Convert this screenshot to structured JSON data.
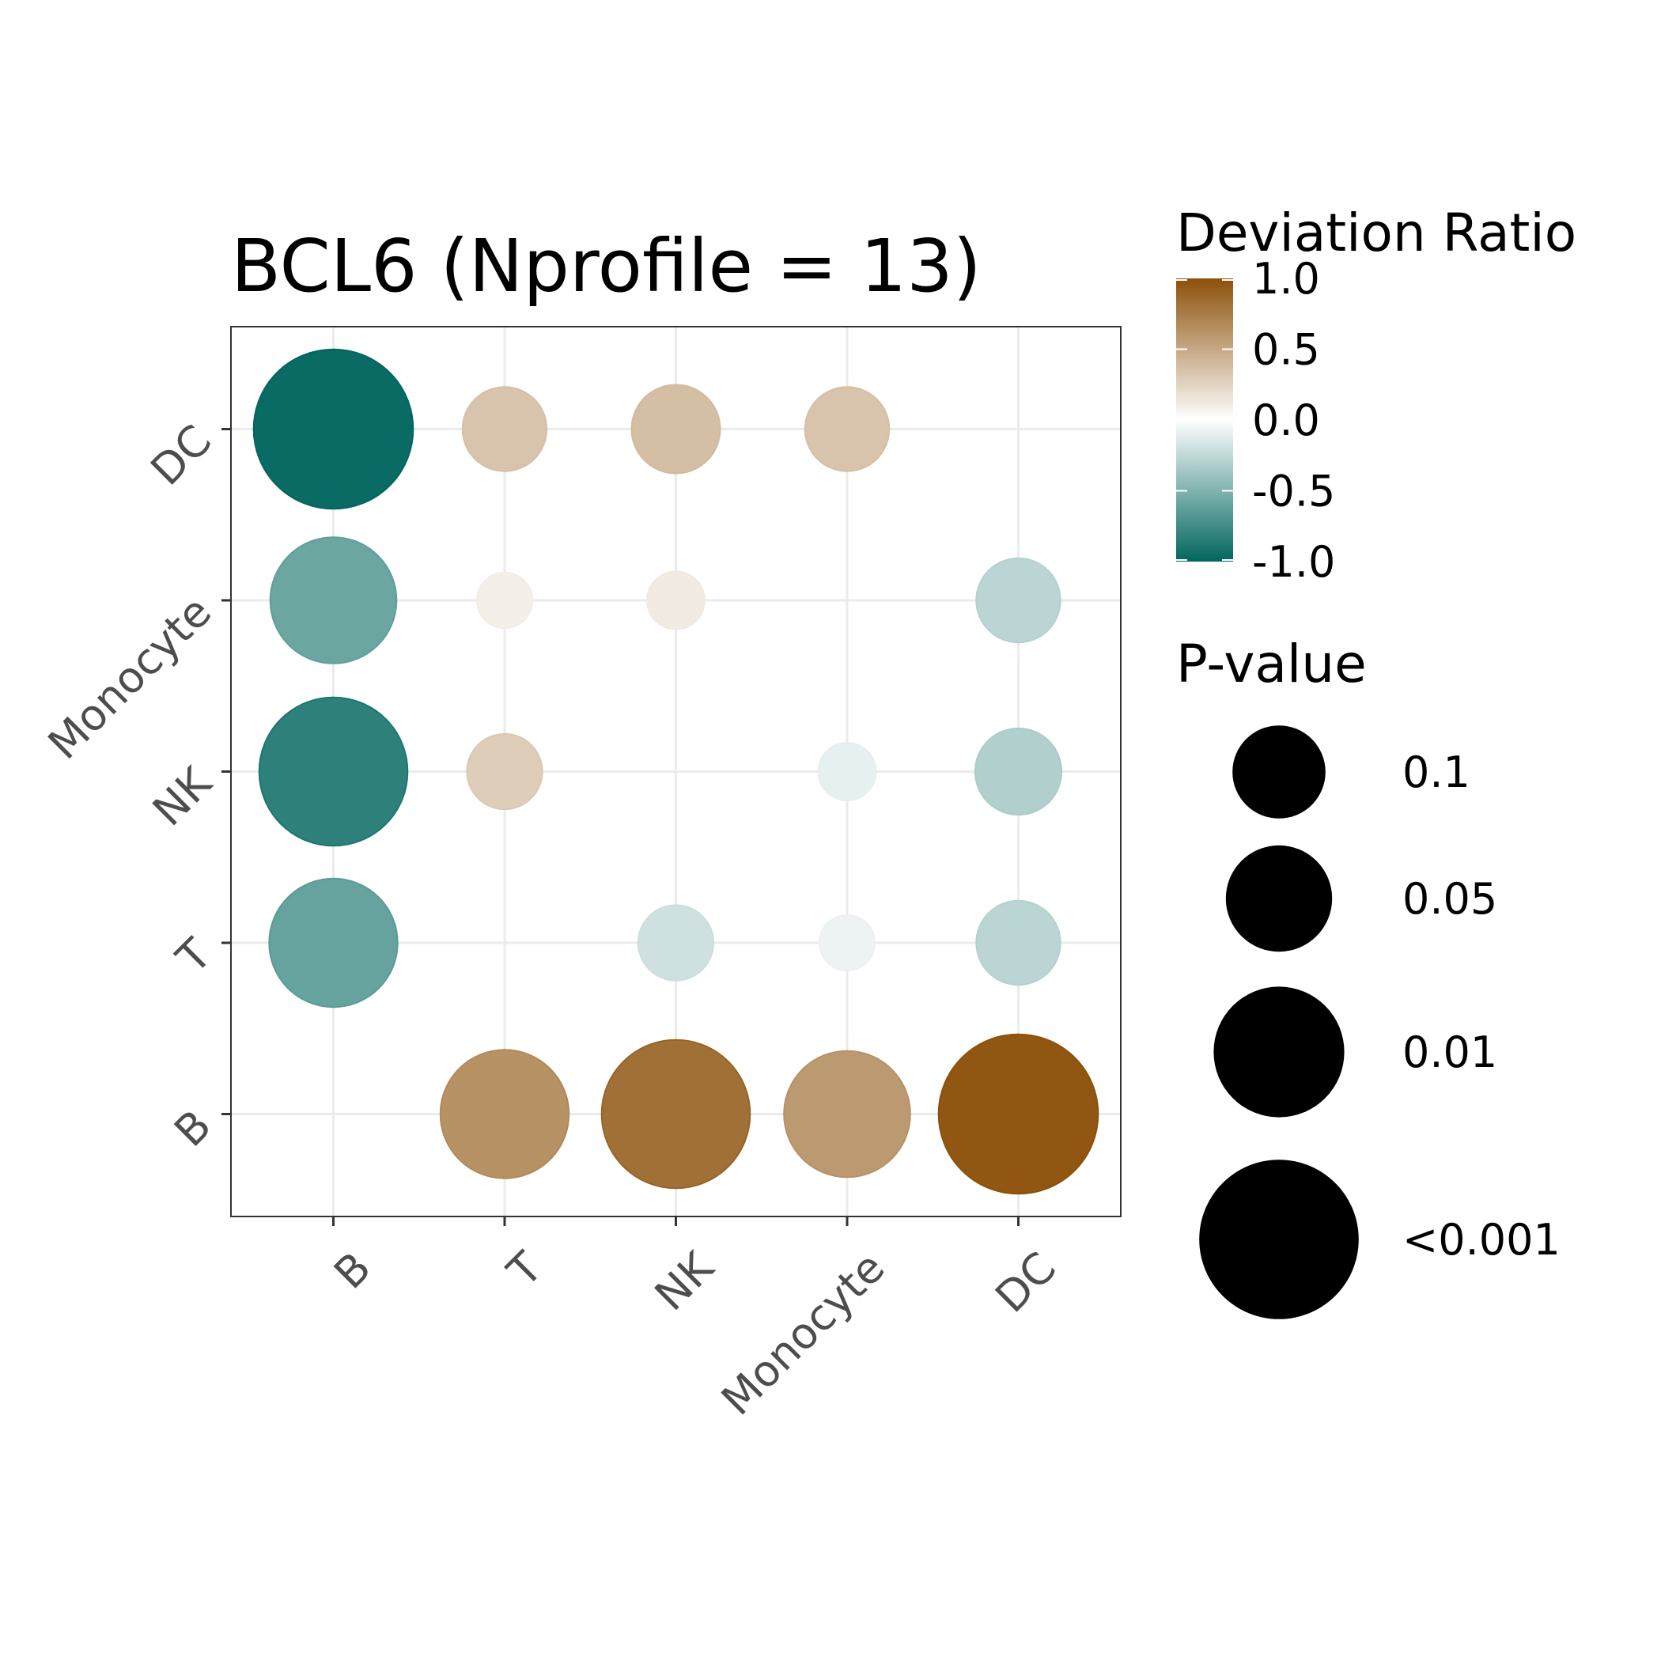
{
  "chart_data": {
    "type": "scatter",
    "subtype": "bubble-matrix",
    "title": "BCL6 (Nprofile = 13)",
    "xlabel": "",
    "ylabel": "",
    "x_categories": [
      "B",
      "T",
      "NK",
      "Monocyte",
      "DC"
    ],
    "y_categories": [
      "B",
      "T",
      "NK",
      "Monocyte",
      "DC"
    ],
    "grid": true,
    "points": [
      {
        "x": "B",
        "y": "DC",
        "ratio": -1.0,
        "p_size": 3.6
      },
      {
        "x": "T",
        "y": "DC",
        "ratio": 0.35,
        "p_size": 1.9
      },
      {
        "x": "NK",
        "y": "DC",
        "ratio": 0.38,
        "p_size": 2.0
      },
      {
        "x": "Monocyte",
        "y": "DC",
        "ratio": 0.35,
        "p_size": 1.9
      },
      {
        "x": "B",
        "y": "Monocyte",
        "ratio": -0.6,
        "p_size": 2.85
      },
      {
        "x": "T",
        "y": "Monocyte",
        "ratio": 0.1,
        "p_size": 1.25
      },
      {
        "x": "NK",
        "y": "Monocyte",
        "ratio": 0.12,
        "p_size": 1.3
      },
      {
        "x": "DC",
        "y": "Monocyte",
        "ratio": -0.28,
        "p_size": 1.9
      },
      {
        "x": "B",
        "y": "NK",
        "ratio": -0.85,
        "p_size": 3.35
      },
      {
        "x": "T",
        "y": "NK",
        "ratio": 0.3,
        "p_size": 1.7
      },
      {
        "x": "Monocyte",
        "y": "NK",
        "ratio": -0.1,
        "p_size": 1.3
      },
      {
        "x": "DC",
        "y": "NK",
        "ratio": -0.32,
        "p_size": 1.95
      },
      {
        "x": "B",
        "y": "T",
        "ratio": -0.62,
        "p_size": 2.9
      },
      {
        "x": "NK",
        "y": "T",
        "ratio": -0.2,
        "p_size": 1.7
      },
      {
        "x": "Monocyte",
        "y": "T",
        "ratio": -0.08,
        "p_size": 1.25
      },
      {
        "x": "DC",
        "y": "T",
        "ratio": -0.28,
        "p_size": 1.9
      },
      {
        "x": "T",
        "y": "B",
        "ratio": 0.65,
        "p_size": 2.9
      },
      {
        "x": "NK",
        "y": "B",
        "ratio": 0.85,
        "p_size": 3.35
      },
      {
        "x": "Monocyte",
        "y": "B",
        "ratio": 0.6,
        "p_size": 2.85
      },
      {
        "x": "DC",
        "y": "B",
        "ratio": 1.0,
        "p_size": 3.6
      }
    ],
    "color_legend": {
      "title": "Deviation Ratio",
      "ticks": [
        "1.0",
        "0.5",
        "0.0",
        "-0.5",
        "-1.0"
      ],
      "tick_values": [
        1.0,
        0.5,
        0.0,
        -0.5,
        -1.0
      ],
      "range": [
        -1.0,
        1.0
      ],
      "high_color": "#8c510a",
      "mid_color": "#ffffff",
      "low_color": "#01665e"
    },
    "size_legend": {
      "title": "P-value",
      "entries": [
        {
          "label": "0.1",
          "p_size": 2.1
        },
        {
          "label": "0.05",
          "p_size": 2.4
        },
        {
          "label": "0.01",
          "p_size": 2.95
        },
        {
          "label": "<0.001",
          "p_size": 3.6
        }
      ],
      "color": "#000000"
    }
  }
}
